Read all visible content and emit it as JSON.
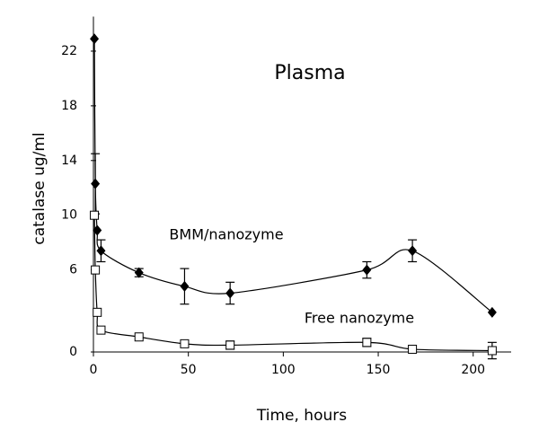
{
  "chart_data": {
    "type": "line",
    "x_label": "Time, hours",
    "y_label": "catalase ug/ml",
    "xlim": [
      0,
      220
    ],
    "ylim": [
      0,
      24
    ],
    "xticks": [
      0,
      50,
      100,
      150,
      200
    ],
    "yticks": [
      0,
      6,
      10,
      14,
      18,
      22
    ],
    "grid": false,
    "annotations": [
      "Plasma",
      "BMM/nanozyme",
      "Free nanozyme"
    ],
    "series": [
      {
        "marker": "diamond",
        "color": "#000000",
        "x": [
          0.5,
          1,
          2,
          4,
          24,
          48,
          72,
          144,
          168,
          210
        ],
        "values": [
          22.9,
          12.3,
          8.9,
          7.4,
          5.8,
          4.8,
          4.3,
          6.0,
          7.4,
          2.9
        ],
        "errors": [
          null,
          2.2,
          null,
          0.8,
          0.3,
          1.3,
          0.8,
          0.6,
          0.8,
          null
        ]
      },
      {
        "marker": "square",
        "color": "#000000",
        "x": [
          0.5,
          1,
          2,
          4,
          24,
          48,
          72,
          144,
          168,
          210
        ],
        "values": [
          10.0,
          6.0,
          2.9,
          1.6,
          1.1,
          0.6,
          0.5,
          0.7,
          0.2,
          0.1
        ],
        "errors": [
          null,
          null,
          null,
          null,
          null,
          null,
          0.3,
          0.3,
          null,
          0.6
        ]
      }
    ]
  }
}
